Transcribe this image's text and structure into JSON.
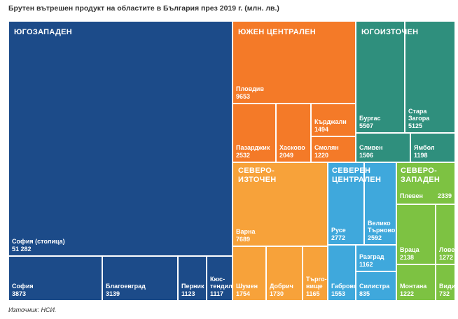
{
  "title": "Брутен вътрешен продукт на областите в България през 2019 г. (млн. лв.)",
  "source": "Източник: НСИ.",
  "chart_data": {
    "type": "treemap",
    "unit": "млн. лв.",
    "regions": [
      {
        "id": "yz",
        "name": "ЮГОЗАПАДЕН",
        "color": "#1c4b89",
        "areas": [
          {
            "id": "sofia-capital",
            "name": "София (столица)",
            "value": "51 282"
          },
          {
            "id": "sofia",
            "name": "София",
            "value": "3873"
          },
          {
            "id": "blagoevgrad",
            "name": "Благоевград",
            "value": "3139"
          },
          {
            "id": "pernik",
            "name": "Перник",
            "value": "1123"
          },
          {
            "id": "kyustendil",
            "name": "Кюс-\nтендил",
            "value": "1117"
          }
        ]
      },
      {
        "id": "yc",
        "name": "ЮЖЕН ЦЕНТРАЛЕН",
        "color": "#f47a28",
        "areas": [
          {
            "id": "plovdiv",
            "name": "Пловдив",
            "value": "9653"
          },
          {
            "id": "pazardzhik",
            "name": "Пазарджик",
            "value": "2532"
          },
          {
            "id": "haskovo",
            "name": "Хасково",
            "value": "2049"
          },
          {
            "id": "kardzhali",
            "name": "Кърджали",
            "value": "1494"
          },
          {
            "id": "smolyan",
            "name": "Смолян",
            "value": "1220"
          }
        ]
      },
      {
        "id": "yi",
        "name": "ЮГОИЗТОЧЕН",
        "color": "#2f8f7d",
        "areas": [
          {
            "id": "burgas",
            "name": "Бургас",
            "value": "5507"
          },
          {
            "id": "stara-zagora",
            "name": "Стара\nЗагора",
            "value": "5125"
          },
          {
            "id": "sliven",
            "name": "Сливен",
            "value": "1506"
          },
          {
            "id": "yambol",
            "name": "Ямбол",
            "value": "1198"
          }
        ]
      },
      {
        "id": "si",
        "name": "СЕВЕРО-\nИЗТОЧЕН",
        "color": "#f7a23a",
        "areas": [
          {
            "id": "varna",
            "name": "Варна",
            "value": "7689"
          },
          {
            "id": "shumen",
            "name": "Шумен",
            "value": "1754"
          },
          {
            "id": "dobrich",
            "name": "Добрич",
            "value": "1730"
          },
          {
            "id": "targovishte",
            "name": "Търго-\nвище",
            "value": "1165"
          }
        ]
      },
      {
        "id": "sc",
        "name": "СЕВЕРЕН\nЦЕНТРАЛЕН",
        "color": "#3fa8dc",
        "areas": [
          {
            "id": "ruse",
            "name": "Русе",
            "value": "2772"
          },
          {
            "id": "veliko-tarnovo",
            "name": "Велико\nТърново",
            "value": "2592"
          },
          {
            "id": "razgrad",
            "name": "Разград",
            "value": "1162"
          },
          {
            "id": "gabrovo",
            "name": "Габрово",
            "value": "1553"
          },
          {
            "id": "silistra",
            "name": "Силистра",
            "value": "835"
          }
        ]
      },
      {
        "id": "sz",
        "name": "СЕВЕРО-\nЗАПАДЕН",
        "color": "#7dc242",
        "areas": [
          {
            "id": "pleven",
            "name": "Плевен",
            "value": "2339"
          },
          {
            "id": "vratsa",
            "name": "Враца",
            "value": "2138"
          },
          {
            "id": "lovech",
            "name": "Ловеч",
            "value": "1272"
          },
          {
            "id": "montana",
            "name": "Монтана",
            "value": "1222"
          },
          {
            "id": "vidin",
            "name": "Видин",
            "value": "732"
          }
        ]
      }
    ]
  }
}
